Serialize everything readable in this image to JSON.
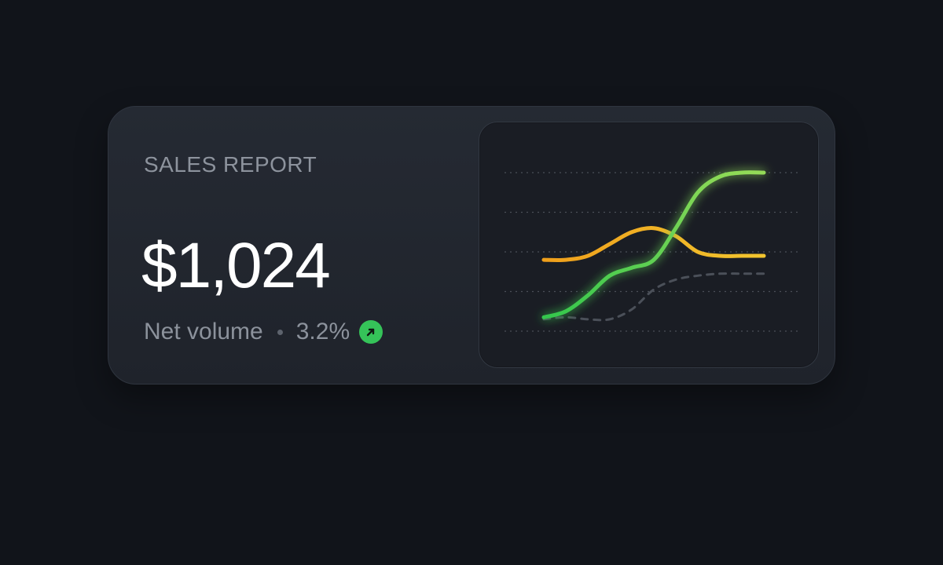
{
  "card": {
    "title": "SALES REPORT",
    "amount": "$1,024",
    "subtitle": "Net volume",
    "change": "3.2%",
    "trend_icon": "arrow-up-right-icon"
  },
  "colors": {
    "background": "#11141a",
    "card": "#22262e",
    "chart_panel": "#1a1d24",
    "positive": "#35c359",
    "series_orange": "#f0ac1d",
    "series_green": "#59d14f",
    "series_dashed": "#4b5059"
  },
  "chart_data": {
    "type": "line",
    "grid": true,
    "x": [
      0,
      1,
      2,
      3,
      4,
      5,
      6,
      7,
      8,
      9,
      10
    ],
    "ylim": [
      0,
      4
    ],
    "series": [
      {
        "values": [
          1.8,
          1.8,
          1.9,
          2.2,
          2.5,
          2.6,
          2.4,
          2.0,
          1.9,
          1.9,
          1.9
        ],
        "color": "#f0ac1d"
      },
      {
        "values": [
          0.35,
          0.5,
          0.9,
          1.4,
          1.6,
          1.8,
          2.6,
          3.5,
          3.9,
          4.0,
          4.0
        ],
        "color": "#59d14f",
        "glow": true
      },
      {
        "values": [
          0.3,
          0.35,
          0.3,
          0.3,
          0.55,
          1.05,
          1.3,
          1.4,
          1.45,
          1.45,
          1.45
        ],
        "color": "#4b5059",
        "dashed": true
      }
    ]
  }
}
